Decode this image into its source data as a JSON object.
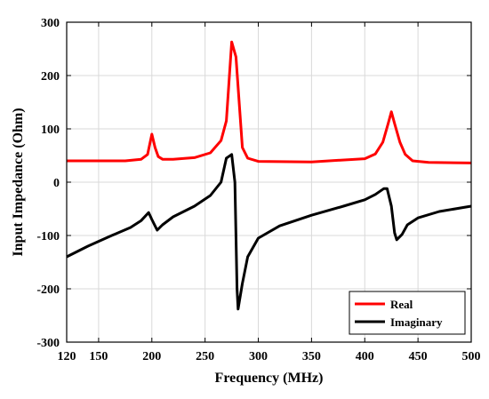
{
  "chart_data": {
    "type": "line",
    "title": "",
    "xlabel": "Frequency (MHz)",
    "ylabel": "Input Impedance (Ohm)",
    "xlim": [
      120,
      500
    ],
    "ylim": [
      -300,
      300
    ],
    "xticks": [
      120,
      150,
      200,
      250,
      300,
      350,
      400,
      450,
      500
    ],
    "yticks": [
      -300,
      -200,
      -100,
      0,
      100,
      200,
      300
    ],
    "grid": true,
    "legend_position": "bottom-right",
    "series": [
      {
        "name": "Real",
        "color": "#ff0000",
        "points": [
          [
            120,
            40
          ],
          [
            150,
            40
          ],
          [
            175,
            40
          ],
          [
            190,
            43
          ],
          [
            196,
            52
          ],
          [
            200,
            90
          ],
          [
            203,
            65
          ],
          [
            206,
            48
          ],
          [
            210,
            43
          ],
          [
            220,
            43
          ],
          [
            240,
            46
          ],
          [
            255,
            55
          ],
          [
            265,
            78
          ],
          [
            270,
            115
          ],
          [
            275,
            263
          ],
          [
            279,
            235
          ],
          [
            282,
            150
          ],
          [
            285,
            65
          ],
          [
            290,
            45
          ],
          [
            300,
            39
          ],
          [
            350,
            38
          ],
          [
            400,
            44
          ],
          [
            410,
            53
          ],
          [
            417,
            75
          ],
          [
            422,
            110
          ],
          [
            425,
            132
          ],
          [
            428,
            110
          ],
          [
            433,
            75
          ],
          [
            438,
            52
          ],
          [
            445,
            40
          ],
          [
            460,
            37
          ],
          [
            500,
            36
          ]
        ]
      },
      {
        "name": "Imaginary",
        "color": "#000000",
        "points": [
          [
            120,
            -140
          ],
          [
            140,
            -120
          ],
          [
            160,
            -102
          ],
          [
            180,
            -85
          ],
          [
            190,
            -72
          ],
          [
            197,
            -57
          ],
          [
            200,
            -70
          ],
          [
            205,
            -90
          ],
          [
            210,
            -80
          ],
          [
            220,
            -65
          ],
          [
            240,
            -45
          ],
          [
            255,
            -25
          ],
          [
            265,
            0
          ],
          [
            270,
            45
          ],
          [
            275,
            52
          ],
          [
            278,
            0
          ],
          [
            280,
            -200
          ],
          [
            281,
            -238
          ],
          [
            285,
            -190
          ],
          [
            290,
            -140
          ],
          [
            300,
            -105
          ],
          [
            320,
            -82
          ],
          [
            350,
            -62
          ],
          [
            380,
            -45
          ],
          [
            400,
            -33
          ],
          [
            410,
            -23
          ],
          [
            418,
            -12
          ],
          [
            421,
            -12
          ],
          [
            425,
            -45
          ],
          [
            428,
            -95
          ],
          [
            430,
            -108
          ],
          [
            435,
            -98
          ],
          [
            440,
            -80
          ],
          [
            450,
            -67
          ],
          [
            470,
            -55
          ],
          [
            500,
            -45
          ]
        ]
      }
    ]
  }
}
